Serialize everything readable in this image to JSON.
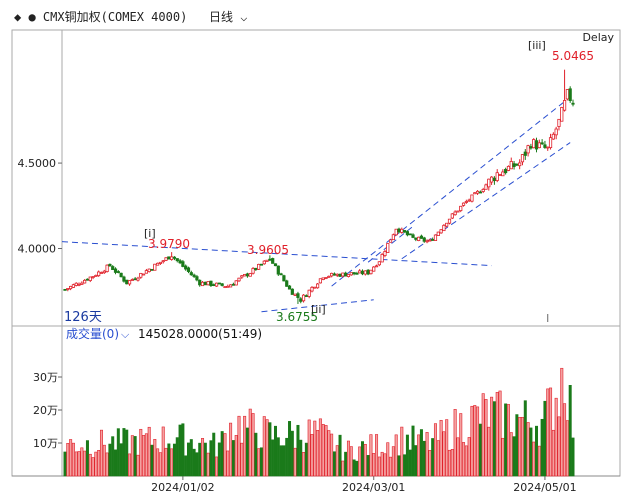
{
  "header": {
    "symbol_title": "CMX铜加权(COMEX 4000)",
    "period": "日线",
    "delay_tag": "Delay"
  },
  "colors": {
    "up": "#e0202a",
    "down": "#1a7a1a",
    "volume_up": "#f4a0a0",
    "channel": "#2a4fd0",
    "wave_label": "#c000c0"
  },
  "price_panel": {
    "bar_count_label": "126天",
    "annotations": {
      "high_1": "3.9790",
      "high_2": "3.9605",
      "low_1": "3.6755",
      "peak": "5.0465"
    },
    "wave_labels": [
      "[i]",
      "[ii]",
      "[iii]"
    ]
  },
  "volume_panel": {
    "title": "成交量(0)",
    "readout": "145028.0000(51:49)"
  },
  "chart_data": {
    "type": "candlestick",
    "price_axis": {
      "ticks": [
        4.0,
        4.5
      ],
      "tick_labels": [
        "4.0000",
        "4.5000"
      ],
      "ylim": [
        3.57,
        5.15
      ]
    },
    "volume_axis": {
      "ticks": [
        100000,
        200000,
        300000
      ],
      "tick_labels": [
        "10万",
        "20万",
        "30万"
      ],
      "ylim": [
        0,
        400000
      ]
    },
    "x_axis": {
      "tick_labels": [
        "2024/01/02",
        "2024/03/01",
        "2024/05/01"
      ],
      "tick_index": [
        42,
        110,
        171
      ]
    },
    "highs": [
      {
        "index": 38,
        "value": 3.979
      },
      {
        "index": 73,
        "value": 3.9605
      },
      {
        "index": 178,
        "value": 5.0465
      }
    ],
    "lows": [
      {
        "index": 83,
        "value": 3.6755
      }
    ],
    "price_path": [
      [
        0,
        3.76
      ],
      [
        10,
        3.84
      ],
      [
        16,
        3.9
      ],
      [
        22,
        3.8
      ],
      [
        30,
        3.88
      ],
      [
        38,
        3.96
      ],
      [
        48,
        3.8
      ],
      [
        58,
        3.78
      ],
      [
        66,
        3.86
      ],
      [
        73,
        3.94
      ],
      [
        80,
        3.76
      ],
      [
        84,
        3.7
      ],
      [
        92,
        3.84
      ],
      [
        100,
        3.85
      ],
      [
        108,
        3.86
      ],
      [
        112,
        3.93
      ],
      [
        118,
        4.12
      ],
      [
        124,
        4.06
      ],
      [
        130,
        4.04
      ],
      [
        136,
        4.16
      ],
      [
        142,
        4.26
      ],
      [
        148,
        4.34
      ],
      [
        154,
        4.44
      ],
      [
        162,
        4.5
      ],
      [
        166,
        4.62
      ],
      [
        172,
        4.58
      ],
      [
        176,
        4.74
      ],
      [
        179,
        4.9
      ],
      [
        181,
        4.86
      ]
    ],
    "volume_path": [
      [
        0,
        95000
      ],
      [
        20,
        100000
      ],
      [
        40,
        115000
      ],
      [
        55,
        90000
      ],
      [
        60,
        160000
      ],
      [
        75,
        120000
      ],
      [
        90,
        130000
      ],
      [
        100,
        75000
      ],
      [
        110,
        90000
      ],
      [
        120,
        110000
      ],
      [
        130,
        100000
      ],
      [
        140,
        150000
      ],
      [
        150,
        190000
      ],
      [
        160,
        175000
      ],
      [
        170,
        160000
      ],
      [
        176,
        260000
      ],
      [
        178,
        340000
      ],
      [
        181,
        150000
      ]
    ]
  }
}
